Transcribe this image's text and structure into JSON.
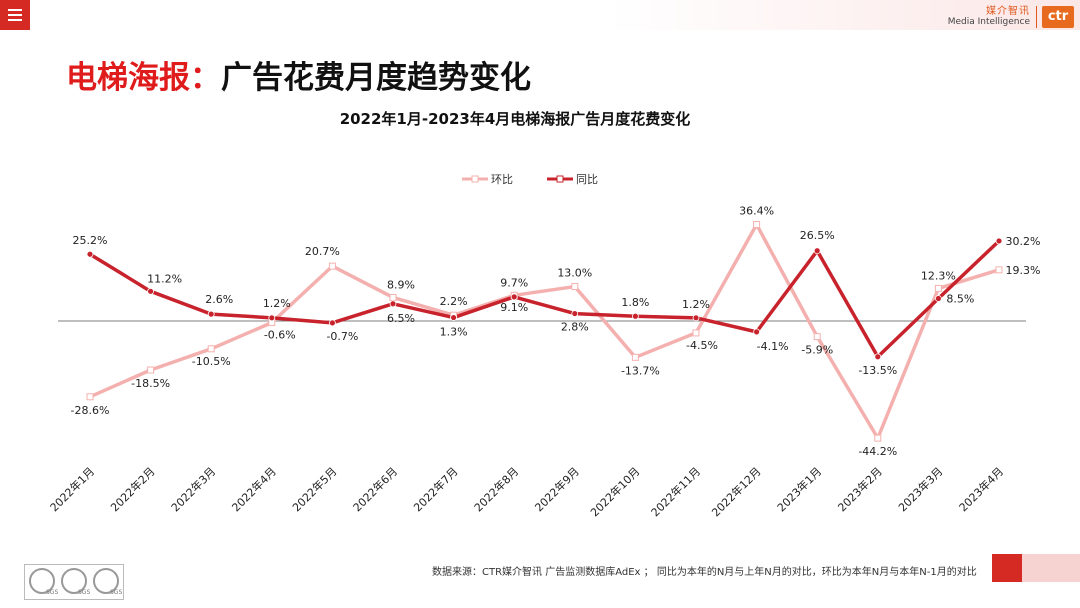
{
  "header": {
    "brand_cn": "媒介智讯",
    "brand_en": "Media Intelligence",
    "logo_text": "ctr",
    "menu_icon": "hamburger-menu-icon"
  },
  "page_title": {
    "lead": "电梯海报：",
    "rest": "广告花费月度趋势变化"
  },
  "footer": {
    "note": "数据来源：CTR媒介智讯 广告监测数据库AdEx ； 同比为本年的N月与上年N月的对比，环比为本年N月与本年N-1月的对比",
    "badge_text": "SGS"
  },
  "colors": {
    "mom": "#f4b0ae",
    "yoy": "#c8232c",
    "accent": "#d42a23",
    "zero_line": "#7f7f7f"
  },
  "chart_data": {
    "type": "line",
    "title": "2022年1月-2023年4月电梯海报广告月度花费变化",
    "categories": [
      "2022年1月",
      "2022年2月",
      "2022年3月",
      "2022年4月",
      "2022年5月",
      "2022年6月",
      "2022年7月",
      "2022年8月",
      "2022年9月",
      "2022年10月",
      "2022年11月",
      "2022年12月",
      "2023年1月",
      "2023年2月",
      "2023年3月",
      "2023年4月"
    ],
    "series": [
      {
        "name": "环比",
        "values": [
          -28.6,
          -18.5,
          -10.5,
          -0.6,
          20.7,
          8.9,
          2.2,
          9.7,
          13.0,
          -13.7,
          -4.5,
          36.4,
          -5.9,
          -44.2,
          12.3,
          19.3
        ],
        "labels": [
          "-28.6%",
          "-18.5%",
          "-10.5%",
          "-0.6%",
          "20.7%",
          "8.9%",
          "2.2%",
          "9.7%",
          "13.0%",
          "-13.7%",
          "-4.5%",
          "36.4%",
          "-5.9%",
          "-44.2%",
          "12.3%",
          "19.3%"
        ]
      },
      {
        "name": "同比",
        "values": [
          25.2,
          11.2,
          2.6,
          1.2,
          -0.7,
          6.5,
          1.3,
          9.1,
          2.8,
          1.8,
          1.2,
          -4.1,
          26.5,
          -13.5,
          8.5,
          30.2
        ],
        "labels": [
          "25.2%",
          "11.2%",
          "2.6%",
          "1.2%",
          "-0.7%",
          "6.5%",
          "1.3%",
          "9.1%",
          "2.8%",
          "1.8%",
          "1.2%",
          "-4.1%",
          "26.5%",
          "-13.5%",
          "8.5%",
          "30.2%"
        ]
      }
    ],
    "legend": "top-center",
    "grid": false,
    "zero_line": true
  }
}
